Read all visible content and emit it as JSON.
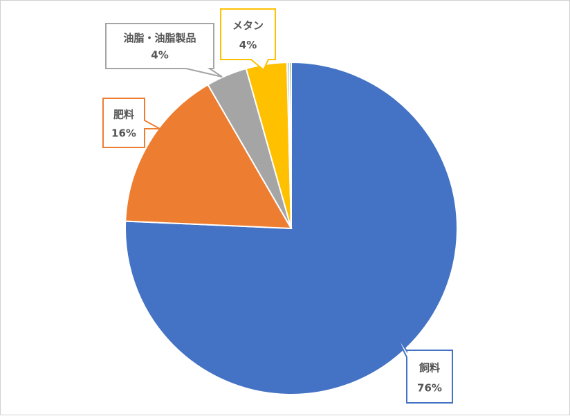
{
  "chart_data": {
    "type": "pie",
    "start_angle_deg": 0,
    "direction": "clockwise",
    "slices": [
      {
        "name": "飼料",
        "value": 76,
        "label": "76%",
        "color": "#4472C4",
        "show_label": true
      },
      {
        "name": "肥料",
        "value": 16,
        "label": "16%",
        "color": "#ED7D31",
        "show_label": true
      },
      {
        "name": "油脂・油脂製品",
        "value": 4,
        "label": "4%",
        "color": "#A5A5A5",
        "show_label": true
      },
      {
        "name": "メタン",
        "value": 4,
        "label": "4%",
        "color": "#FFC000",
        "show_label": true
      },
      {
        "name": "",
        "value": 0.2,
        "label": "",
        "color": "#5B9BD5",
        "show_label": false
      },
      {
        "name": "",
        "value": 0.2,
        "label": "",
        "color": "#70AD47",
        "show_label": false
      }
    ]
  }
}
